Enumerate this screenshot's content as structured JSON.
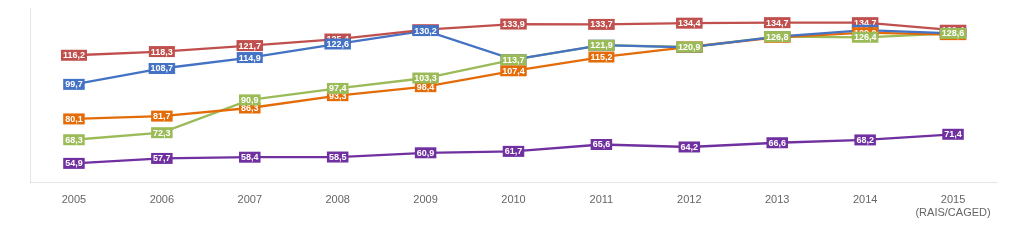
{
  "chart_data": {
    "type": "line",
    "categories": [
      "2005",
      "2006",
      "2007",
      "2008",
      "2009",
      "2010",
      "2011",
      "2012",
      "2013",
      "2014",
      "2015\n(RAIS/CAGED)"
    ],
    "series": [
      {
        "color": "#c0504d",
        "values": [
          116.2,
          118.3,
          121.7,
          125.4,
          130.7,
          133.9,
          133.7,
          134.4,
          134.7,
          134.7,
          130.4
        ],
        "value_labels": [
          "116,2",
          "118,3",
          "121,7",
          "125,4",
          "130,7",
          "133,9",
          "133,7",
          "134,4",
          "134,7",
          "134,7",
          "130,4"
        ]
      },
      {
        "color": "#4472c4",
        "values": [
          99.7,
          108.7,
          114.9,
          122.6,
          130.2,
          113.7,
          121.9,
          120.7,
          126.8,
          130.4,
          128.6
        ],
        "value_labels": [
          "99,7",
          "108,7",
          "114,9",
          "122,6",
          "130,2",
          "113,7",
          "121,9",
          "120,7",
          "126,8",
          "130,4",
          "128,6"
        ]
      },
      {
        "color": "#e36c09",
        "values": [
          80.1,
          81.7,
          86.3,
          93.3,
          98.4,
          107.4,
          115.2,
          120.9,
          126.4,
          129.0,
          127.9
        ],
        "value_labels": [
          "80,1",
          "81,7",
          "86,3",
          "93,3",
          "98,4",
          "107,4",
          "115,2",
          "120,9",
          "126,4",
          "129,0",
          "127,9"
        ]
      },
      {
        "color": "#9bbb59",
        "values": [
          68.3,
          72.3,
          90.9,
          97.4,
          103.3,
          113.7,
          121.9,
          120.9,
          126.8,
          126.4,
          128.6
        ],
        "value_labels": [
          "68,3",
          "72,3",
          "90,9",
          "97,4",
          "103,3",
          "113,7",
          "121,9",
          "120,9",
          "126,8",
          "126,4",
          "128,6"
        ]
      },
      {
        "color": "#7030a0",
        "values": [
          54.9,
          57.7,
          58.4,
          58.5,
          60.9,
          61.7,
          65.6,
          64.2,
          66.6,
          68.2,
          71.4
        ],
        "value_labels": [
          "54,9",
          "57,7",
          "58,4",
          "58,5",
          "60,9",
          "61,7",
          "65,6",
          "64,2",
          "66,6",
          "68,2",
          "71,4"
        ]
      }
    ],
    "ylim": [
      44,
      143
    ],
    "grid": false,
    "data_labels": true,
    "tick_labels": "x"
  }
}
